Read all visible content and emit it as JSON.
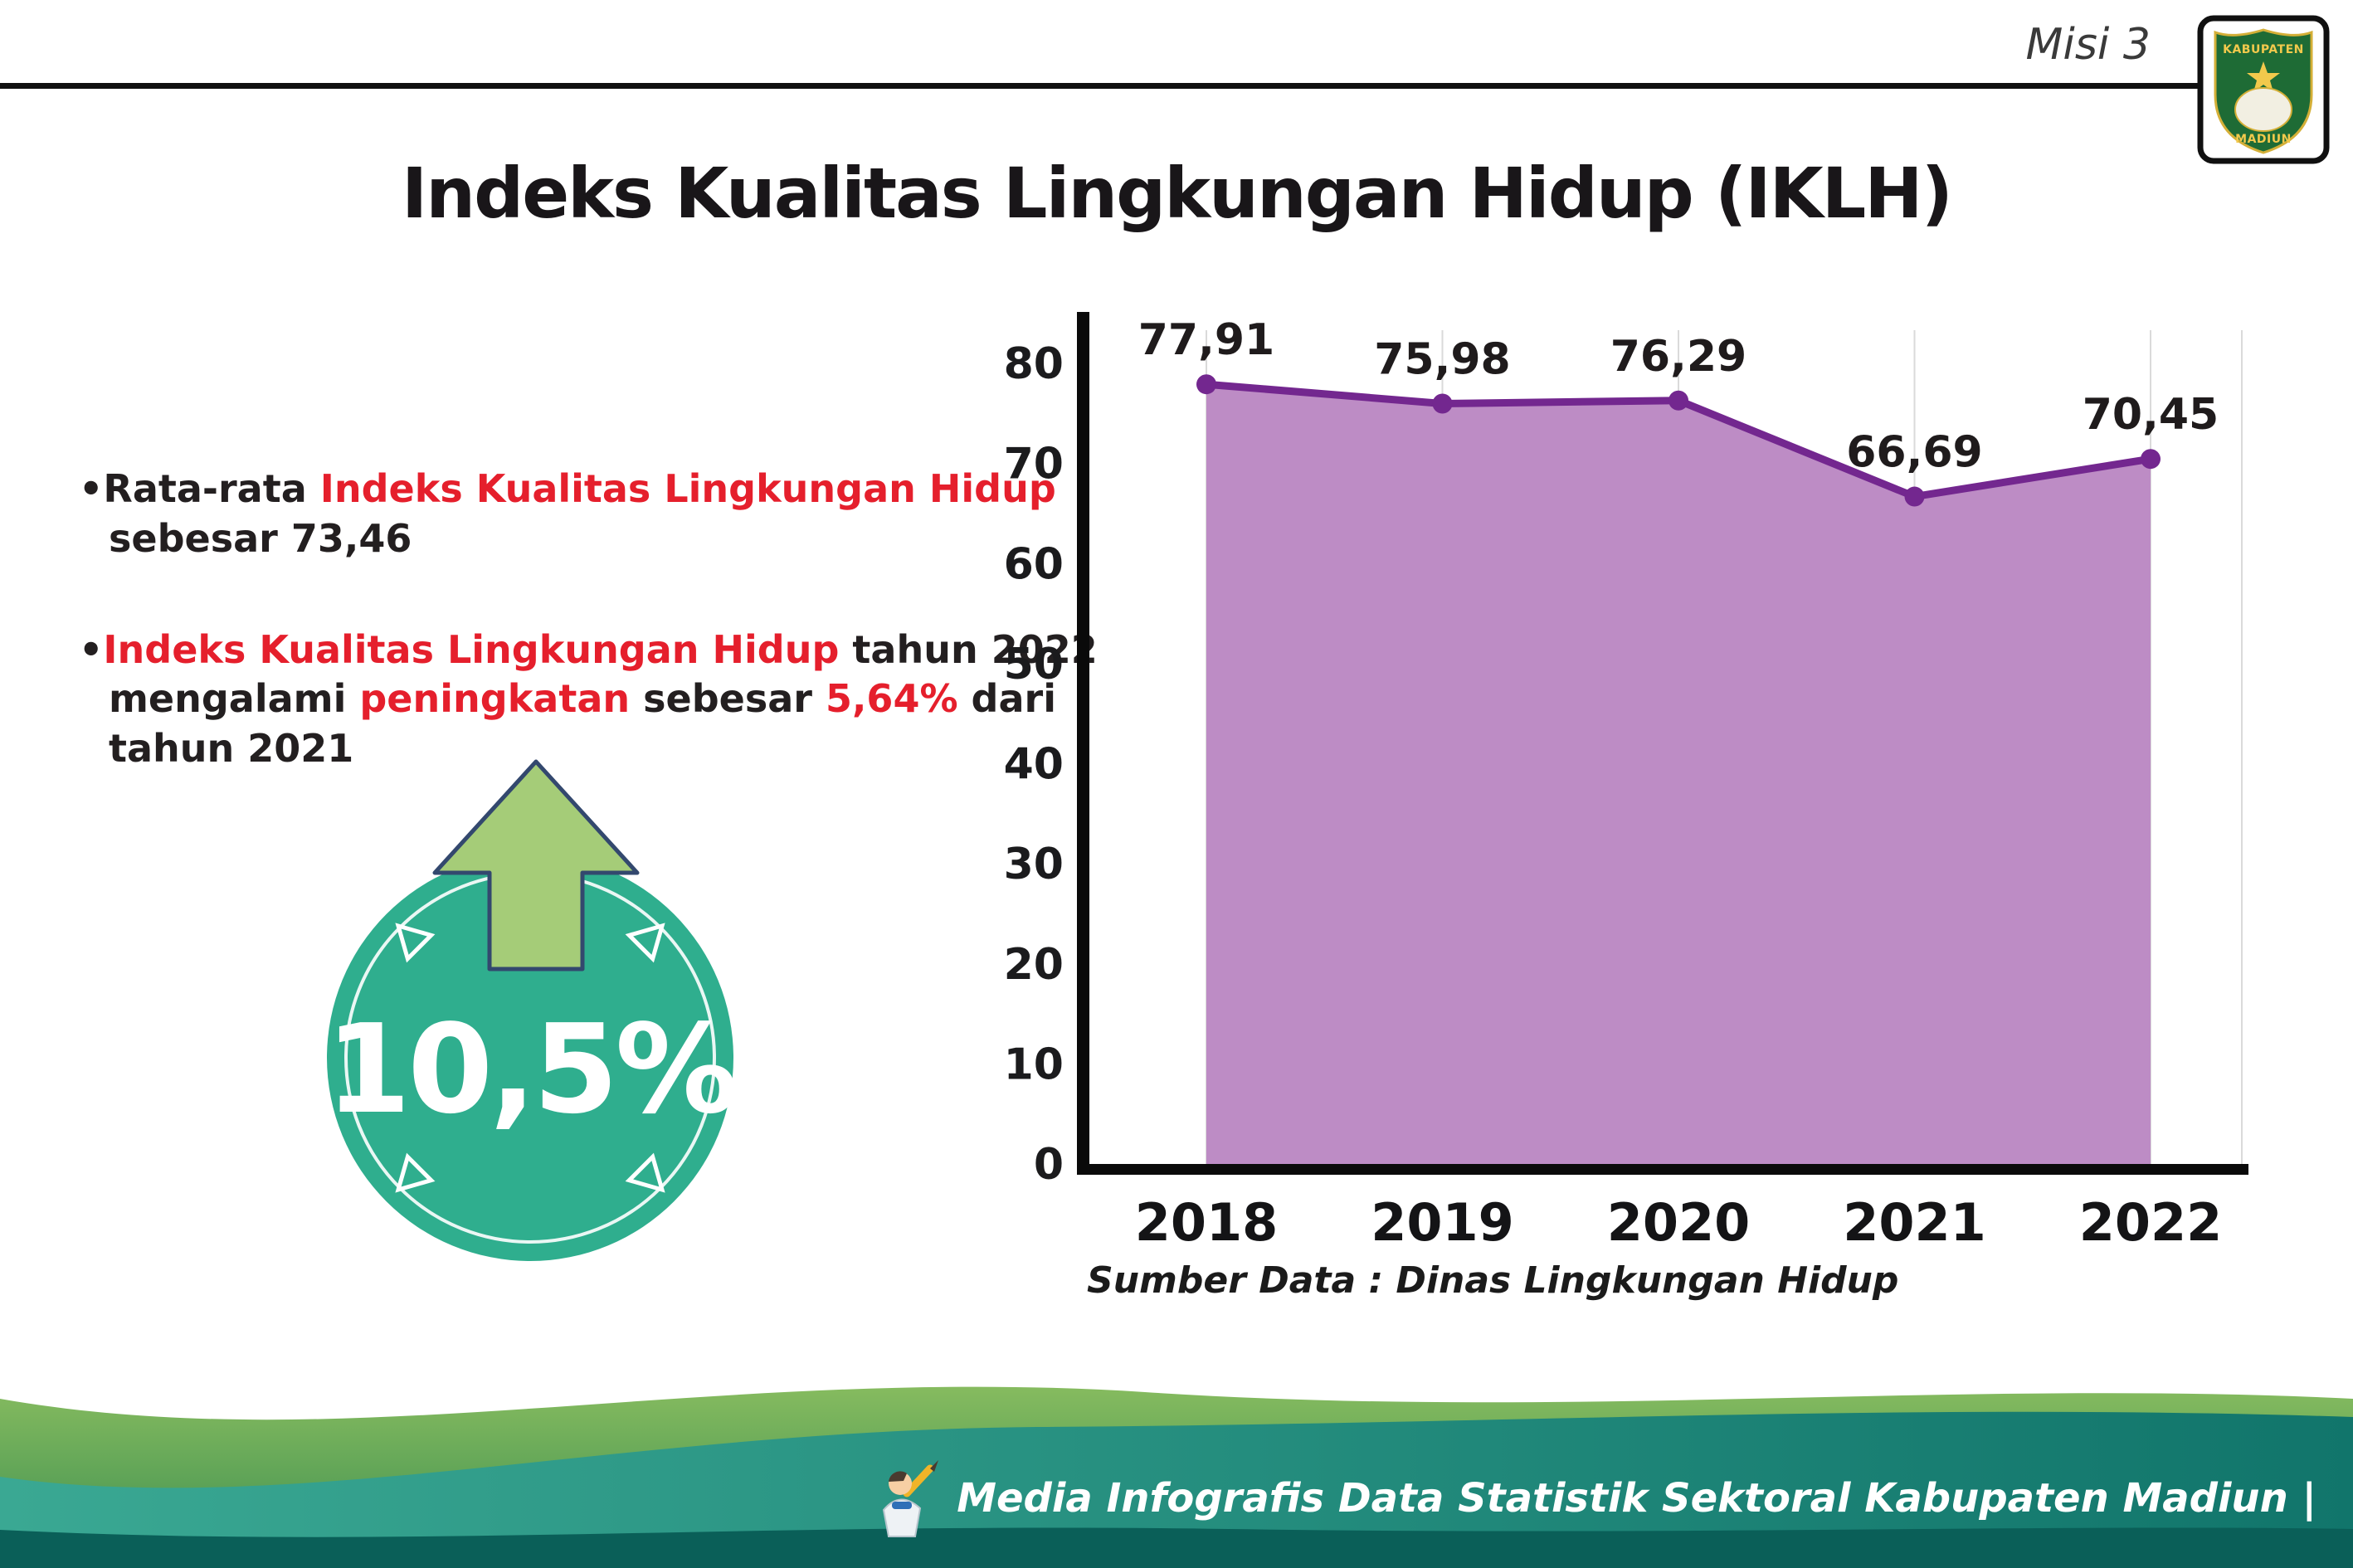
{
  "header": {
    "misi_label": "Misi 3",
    "title": "Indeks Kualitas Lingkungan Hidup (IKLH)",
    "logo": {
      "text_top": "KABUPATEN",
      "text_bottom": "MADIUN"
    }
  },
  "bullets": [
    {
      "bullet": "•",
      "segments": [
        {
          "t": "Rata-rata ",
          "c": "plain"
        },
        {
          "t": "Indeks Kualitas Lingkungan Hidup",
          "c": "red"
        },
        {
          "t": " sebesar 73,46",
          "c": "plain"
        }
      ]
    },
    {
      "bullet": "•",
      "segments": [
        {
          "t": "Indeks Kualitas Lingkungan Hidup",
          "c": "red"
        },
        {
          "t": " tahun 2022 mengalami ",
          "c": "plain"
        },
        {
          "t": "peningkatan",
          "c": "red"
        },
        {
          "t": " sebesar ",
          "c": "plain"
        },
        {
          "t": "5,64%",
          "c": "red"
        },
        {
          "t": " dari tahun 2021",
          "c": "plain"
        }
      ]
    }
  ],
  "badge": {
    "value": "10,5%",
    "direction": "up"
  },
  "chart_data": {
    "type": "area",
    "title": "Indeks Kualitas Lingkungan Hidup (IKLH)",
    "categories": [
      "2018",
      "2019",
      "2020",
      "2021",
      "2022"
    ],
    "values": [
      77.91,
      75.98,
      76.29,
      66.69,
      70.45
    ],
    "value_labels": [
      "77,91",
      "75,98",
      "76,29",
      "66,69",
      "70,45"
    ],
    "xlabel": "",
    "ylabel": "",
    "ylim": [
      0,
      80
    ],
    "ytick_step": 10,
    "grid": "vertical-light",
    "legend": "none",
    "area_color": "#bd8cc5",
    "line_color": "#73278f",
    "source": "Sumber Data : Dinas Lingkungan Hidup"
  },
  "footer": {
    "credit": "Media Infografis Data Statistik Sektoral Kabupaten Madiun |"
  },
  "colors": {
    "accent_red": "#e51f2c",
    "badge_teal": "#2fae8e",
    "arrow_green": "#a5cc78",
    "area_purple": "#bd8cc5",
    "line_purple": "#73278f",
    "footer_green": "#57a258",
    "footer_teal": "#1d8a7c",
    "footer_dark": "#0a5f58",
    "axis_black": "#0a0a0a"
  }
}
